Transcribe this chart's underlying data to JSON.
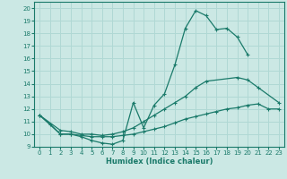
{
  "xlabel": "Humidex (Indice chaleur)",
  "bg_color": "#cbe8e4",
  "grid_color": "#b0d8d4",
  "line_color": "#1a7a6a",
  "xlim": [
    -0.5,
    23.5
  ],
  "ylim": [
    9,
    20.5
  ],
  "xticks": [
    0,
    1,
    2,
    3,
    4,
    5,
    6,
    7,
    8,
    9,
    10,
    11,
    12,
    13,
    14,
    15,
    16,
    17,
    18,
    19,
    20,
    21,
    22,
    23
  ],
  "yticks": [
    9,
    10,
    11,
    12,
    13,
    14,
    15,
    16,
    17,
    18,
    19,
    20
  ],
  "line1_x": [
    0,
    1,
    2,
    3,
    4,
    5,
    6,
    7,
    8,
    9,
    10,
    11,
    12,
    13,
    14,
    15,
    16,
    17,
    18,
    19,
    20
  ],
  "line1_y": [
    11.5,
    10.8,
    10.0,
    10.0,
    9.8,
    9.5,
    9.3,
    9.2,
    9.5,
    12.5,
    10.5,
    12.3,
    13.2,
    15.5,
    18.4,
    19.8,
    19.4,
    18.3,
    18.4,
    17.7,
    16.3
  ],
  "line2_x": [
    0,
    2,
    3,
    4,
    5,
    6,
    7,
    8,
    9,
    10,
    11,
    12,
    13,
    14,
    15,
    16,
    19,
    20,
    21,
    23
  ],
  "line2_y": [
    11.5,
    10.3,
    10.2,
    10.0,
    10.0,
    9.9,
    10.0,
    10.2,
    10.5,
    11.0,
    11.5,
    12.0,
    12.5,
    13.0,
    13.7,
    14.2,
    14.5,
    14.3,
    13.7,
    12.5
  ],
  "line3_x": [
    0,
    2,
    3,
    4,
    5,
    6,
    7,
    8,
    9,
    10,
    11,
    12,
    13,
    14,
    15,
    16,
    17,
    18,
    19,
    20,
    21,
    22,
    23
  ],
  "line3_y": [
    11.5,
    10.0,
    10.0,
    9.9,
    9.8,
    9.8,
    9.8,
    9.9,
    10.0,
    10.2,
    10.4,
    10.6,
    10.9,
    11.2,
    11.4,
    11.6,
    11.8,
    12.0,
    12.1,
    12.3,
    12.4,
    12.0,
    12.0
  ]
}
